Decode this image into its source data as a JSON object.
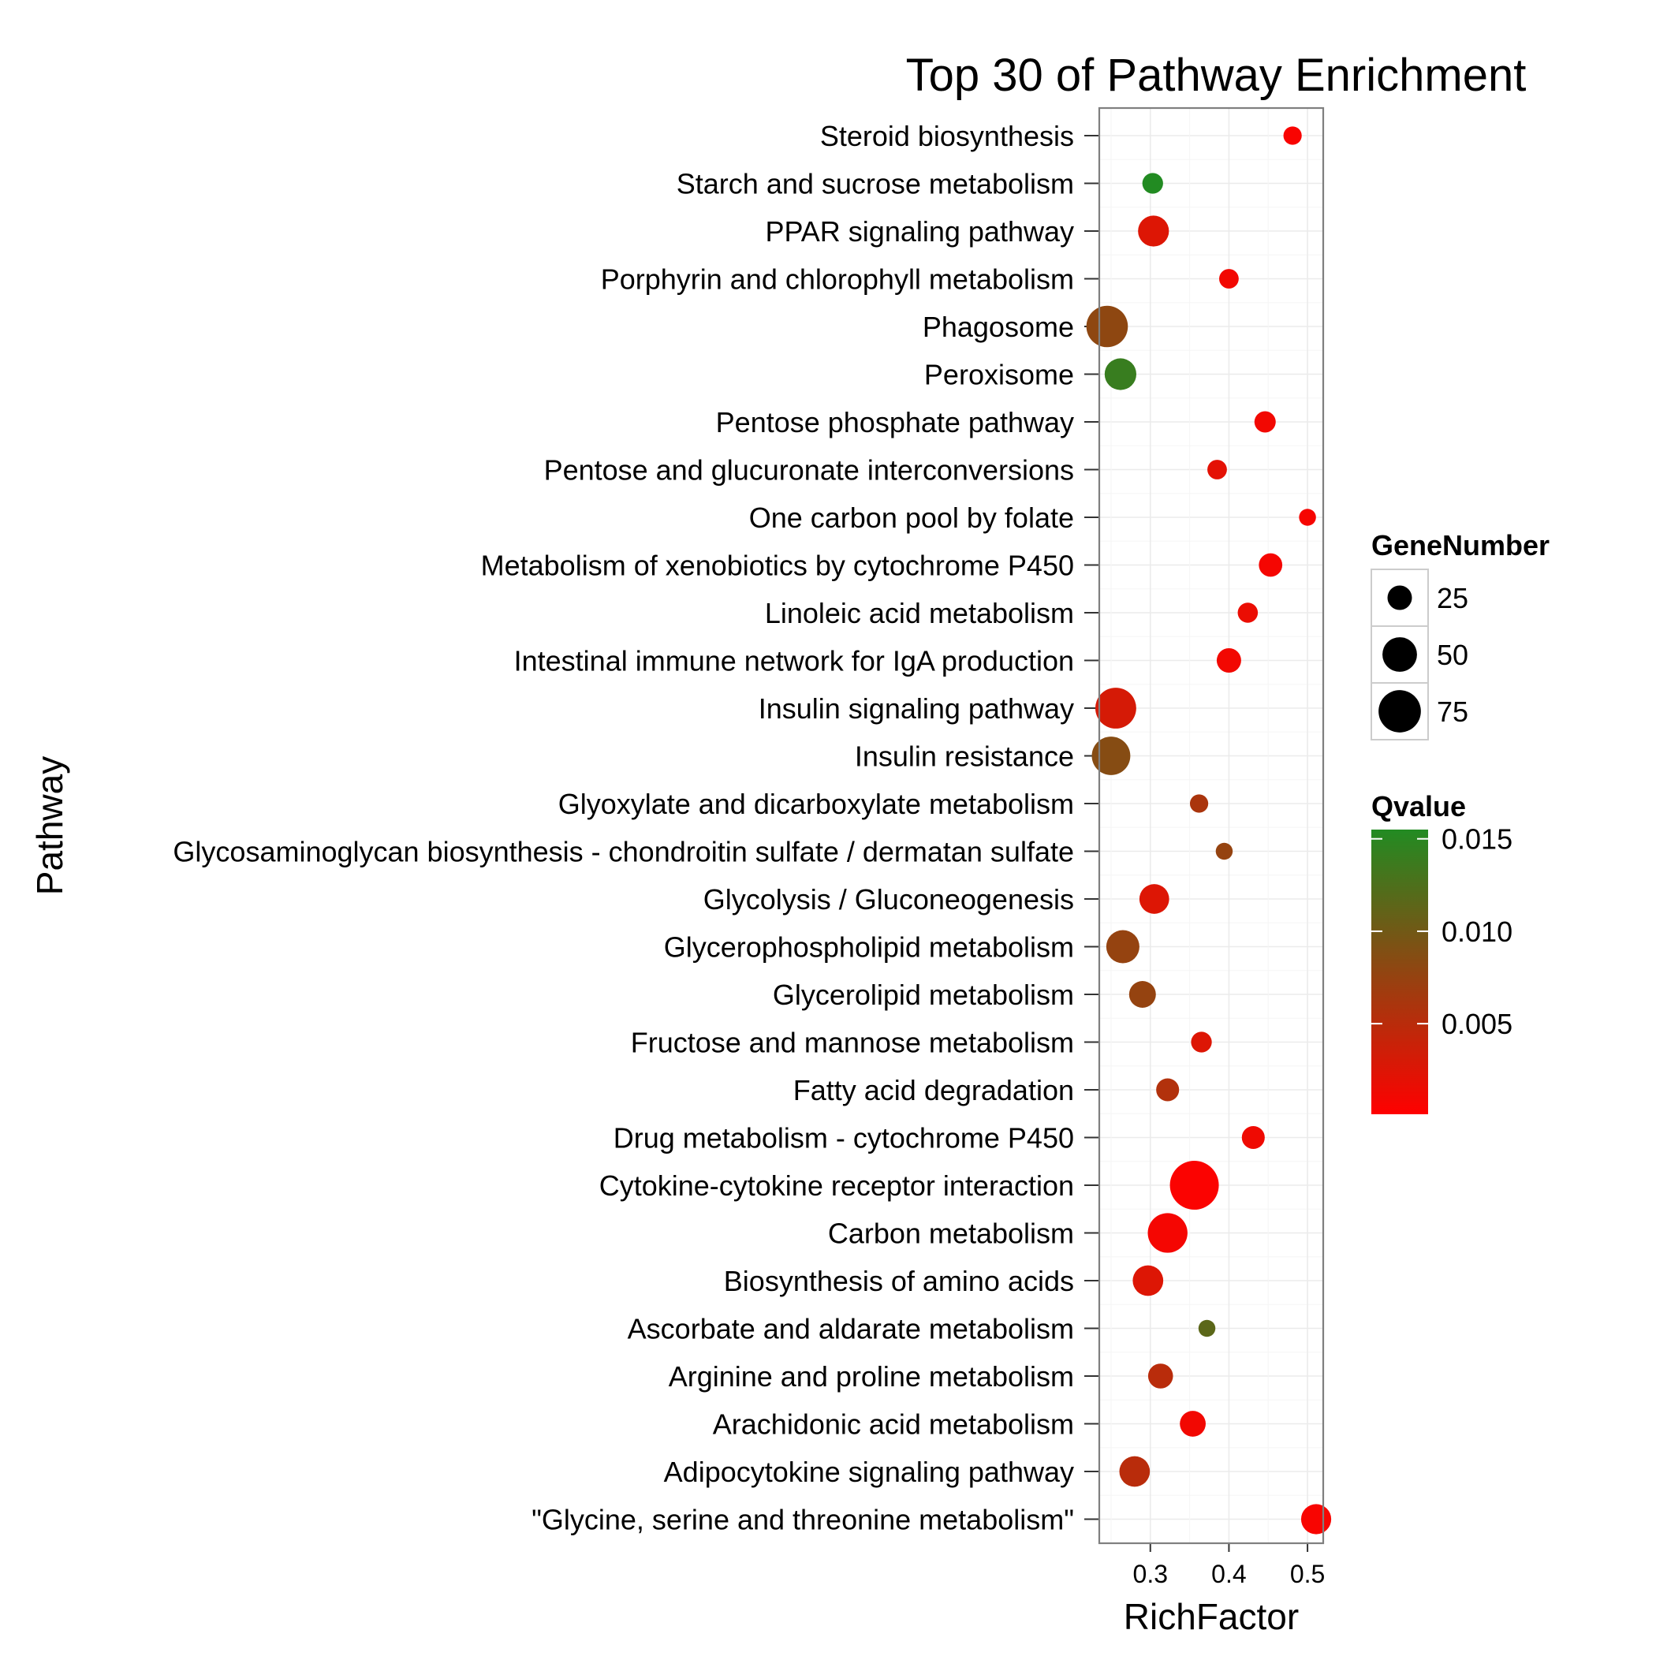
{
  "chart_data": {
    "type": "scatter",
    "title": "Top 30 of Pathway Enrichment",
    "xlabel": "RichFactor",
    "ylabel": "Pathway",
    "xlim": [
      0.235,
      0.52
    ],
    "xticks": [
      0.3,
      0.4,
      0.5
    ],
    "xtick_labels": [
      "0.3",
      "0.4",
      "0.5"
    ],
    "grid": true,
    "legend_position": "right",
    "categories": [
      "Steroid biosynthesis",
      "Starch and sucrose metabolism",
      "PPAR signaling pathway",
      "Porphyrin and chlorophyll metabolism",
      "Phagosome",
      "Peroxisome",
      "Pentose phosphate pathway",
      "Pentose and glucuronate interconversions",
      "One carbon pool by folate",
      "Metabolism of xenobiotics by cytochrome P450",
      "Linoleic acid metabolism",
      "Intestinal immune network for IgA production",
      "Insulin signaling pathway",
      "Insulin resistance",
      "Glyoxylate and dicarboxylate metabolism",
      "Glycosaminoglycan biosynthesis - chondroitin sulfate / dermatan sulfate",
      "Glycolysis / Gluconeogenesis",
      "Glycerophospholipid metabolism",
      "Glycerolipid metabolism",
      "Fructose and mannose metabolism",
      "Fatty acid degradation",
      "Drug metabolism - cytochrome P450",
      "Cytokine-cytokine receptor interaction",
      "Carbon metabolism",
      "Biosynthesis of amino acids",
      "Ascorbate and aldarate metabolism",
      "Arginine and proline metabolism",
      "Arachidonic acid metabolism",
      "Adipocytokine signaling pathway",
      "\"Glycine, serine and threonine metabolism\""
    ],
    "points": [
      {
        "pathway": "Steroid biosynthesis",
        "rich_factor": 0.481,
        "gene_number": 14,
        "qvalue": 0.0005
      },
      {
        "pathway": "Starch and sucrose metabolism",
        "rich_factor": 0.303,
        "gene_number": 18,
        "qvalue": 0.0155
      },
      {
        "pathway": "PPAR signaling pathway",
        "rich_factor": 0.304,
        "gene_number": 40,
        "qvalue": 0.0025
      },
      {
        "pathway": "Porphyrin and chlorophyll metabolism",
        "rich_factor": 0.4,
        "gene_number": 16,
        "qvalue": 0.001
      },
      {
        "pathway": "Phagosome",
        "rich_factor": 0.245,
        "gene_number": 72,
        "qvalue": 0.008
      },
      {
        "pathway": "Peroxisome",
        "rich_factor": 0.262,
        "gene_number": 42,
        "qvalue": 0.014
      },
      {
        "pathway": "Pentose phosphate pathway",
        "rich_factor": 0.446,
        "gene_number": 19,
        "qvalue": 0.001
      },
      {
        "pathway": "Pentose and glucuronate interconversions",
        "rich_factor": 0.385,
        "gene_number": 16,
        "qvalue": 0.002
      },
      {
        "pathway": "One carbon pool by folate",
        "rich_factor": 0.5,
        "gene_number": 12,
        "qvalue": 0.0007
      },
      {
        "pathway": "Metabolism of xenobiotics by cytochrome P450",
        "rich_factor": 0.453,
        "gene_number": 23,
        "qvalue": 0.0008
      },
      {
        "pathway": "Linoleic acid metabolism",
        "rich_factor": 0.424,
        "gene_number": 17,
        "qvalue": 0.0015
      },
      {
        "pathway": "Intestinal immune network for IgA production",
        "rich_factor": 0.4,
        "gene_number": 25,
        "qvalue": 0.001
      },
      {
        "pathway": "Insulin signaling pathway",
        "rich_factor": 0.256,
        "gene_number": 70,
        "qvalue": 0.003
      },
      {
        "pathway": "Insulin resistance",
        "rich_factor": 0.25,
        "gene_number": 62,
        "qvalue": 0.0085
      },
      {
        "pathway": "Glyoxylate and dicarboxylate metabolism",
        "rich_factor": 0.362,
        "gene_number": 14,
        "qvalue": 0.006
      },
      {
        "pathway": "Glycosaminoglycan biosynthesis - chondroitin sulfate / dermatan sulfate",
        "rich_factor": 0.394,
        "gene_number": 12,
        "qvalue": 0.0075
      },
      {
        "pathway": "Glycolysis / Gluconeogenesis",
        "rich_factor": 0.305,
        "gene_number": 37,
        "qvalue": 0.0025
      },
      {
        "pathway": "Glycerophospholipid metabolism",
        "rich_factor": 0.265,
        "gene_number": 46,
        "qvalue": 0.0075
      },
      {
        "pathway": "Glycerolipid metabolism",
        "rich_factor": 0.29,
        "gene_number": 30,
        "qvalue": 0.0075
      },
      {
        "pathway": "Fructose and mannose metabolism",
        "rich_factor": 0.365,
        "gene_number": 18,
        "qvalue": 0.0025
      },
      {
        "pathway": "Fatty acid degradation",
        "rich_factor": 0.322,
        "gene_number": 22,
        "qvalue": 0.0055
      },
      {
        "pathway": "Drug metabolism - cytochrome P450",
        "rich_factor": 0.431,
        "gene_number": 22,
        "qvalue": 0.0012
      },
      {
        "pathway": "Cytokine-cytokine receptor interaction",
        "rich_factor": 0.356,
        "gene_number": 100,
        "qvalue": 0.0004
      },
      {
        "pathway": "Carbon metabolism",
        "rich_factor": 0.322,
        "gene_number": 66,
        "qvalue": 0.0008
      },
      {
        "pathway": "Biosynthesis of amino acids",
        "rich_factor": 0.297,
        "gene_number": 39,
        "qvalue": 0.0025
      },
      {
        "pathway": "Ascorbate and aldarate metabolism",
        "rich_factor": 0.372,
        "gene_number": 12,
        "qvalue": 0.0115
      },
      {
        "pathway": "Arginine and proline metabolism",
        "rich_factor": 0.313,
        "gene_number": 26,
        "qvalue": 0.005
      },
      {
        "pathway": "Arachidonic acid metabolism",
        "rich_factor": 0.354,
        "gene_number": 28,
        "qvalue": 0.001
      },
      {
        "pathway": "Adipocytokine signaling pathway",
        "rich_factor": 0.28,
        "gene_number": 39,
        "qvalue": 0.005
      },
      {
        "pathway": "\"Glycine, serine and threonine metabolism\"",
        "rich_factor": 0.511,
        "gene_number": 38,
        "qvalue": 0.0006
      }
    ],
    "legend_size": {
      "title": "GeneNumber",
      "values": [
        25,
        50,
        75
      ],
      "labels": [
        "25",
        "50",
        "75"
      ]
    },
    "legend_color": {
      "title": "Qvalue",
      "range": [
        0.0001,
        0.0155
      ],
      "ticks": [
        0.015,
        0.01,
        0.005
      ],
      "tick_labels": [
        "0.015",
        "0.010",
        "0.005"
      ],
      "low_color": "#ff0000",
      "high_color": "#228b22"
    },
    "colors": {
      "panel_border": "#7f7f7f",
      "grid_major": "#ebebeb",
      "grid_minor": "#f5f5f5",
      "tick": "#333333"
    }
  }
}
